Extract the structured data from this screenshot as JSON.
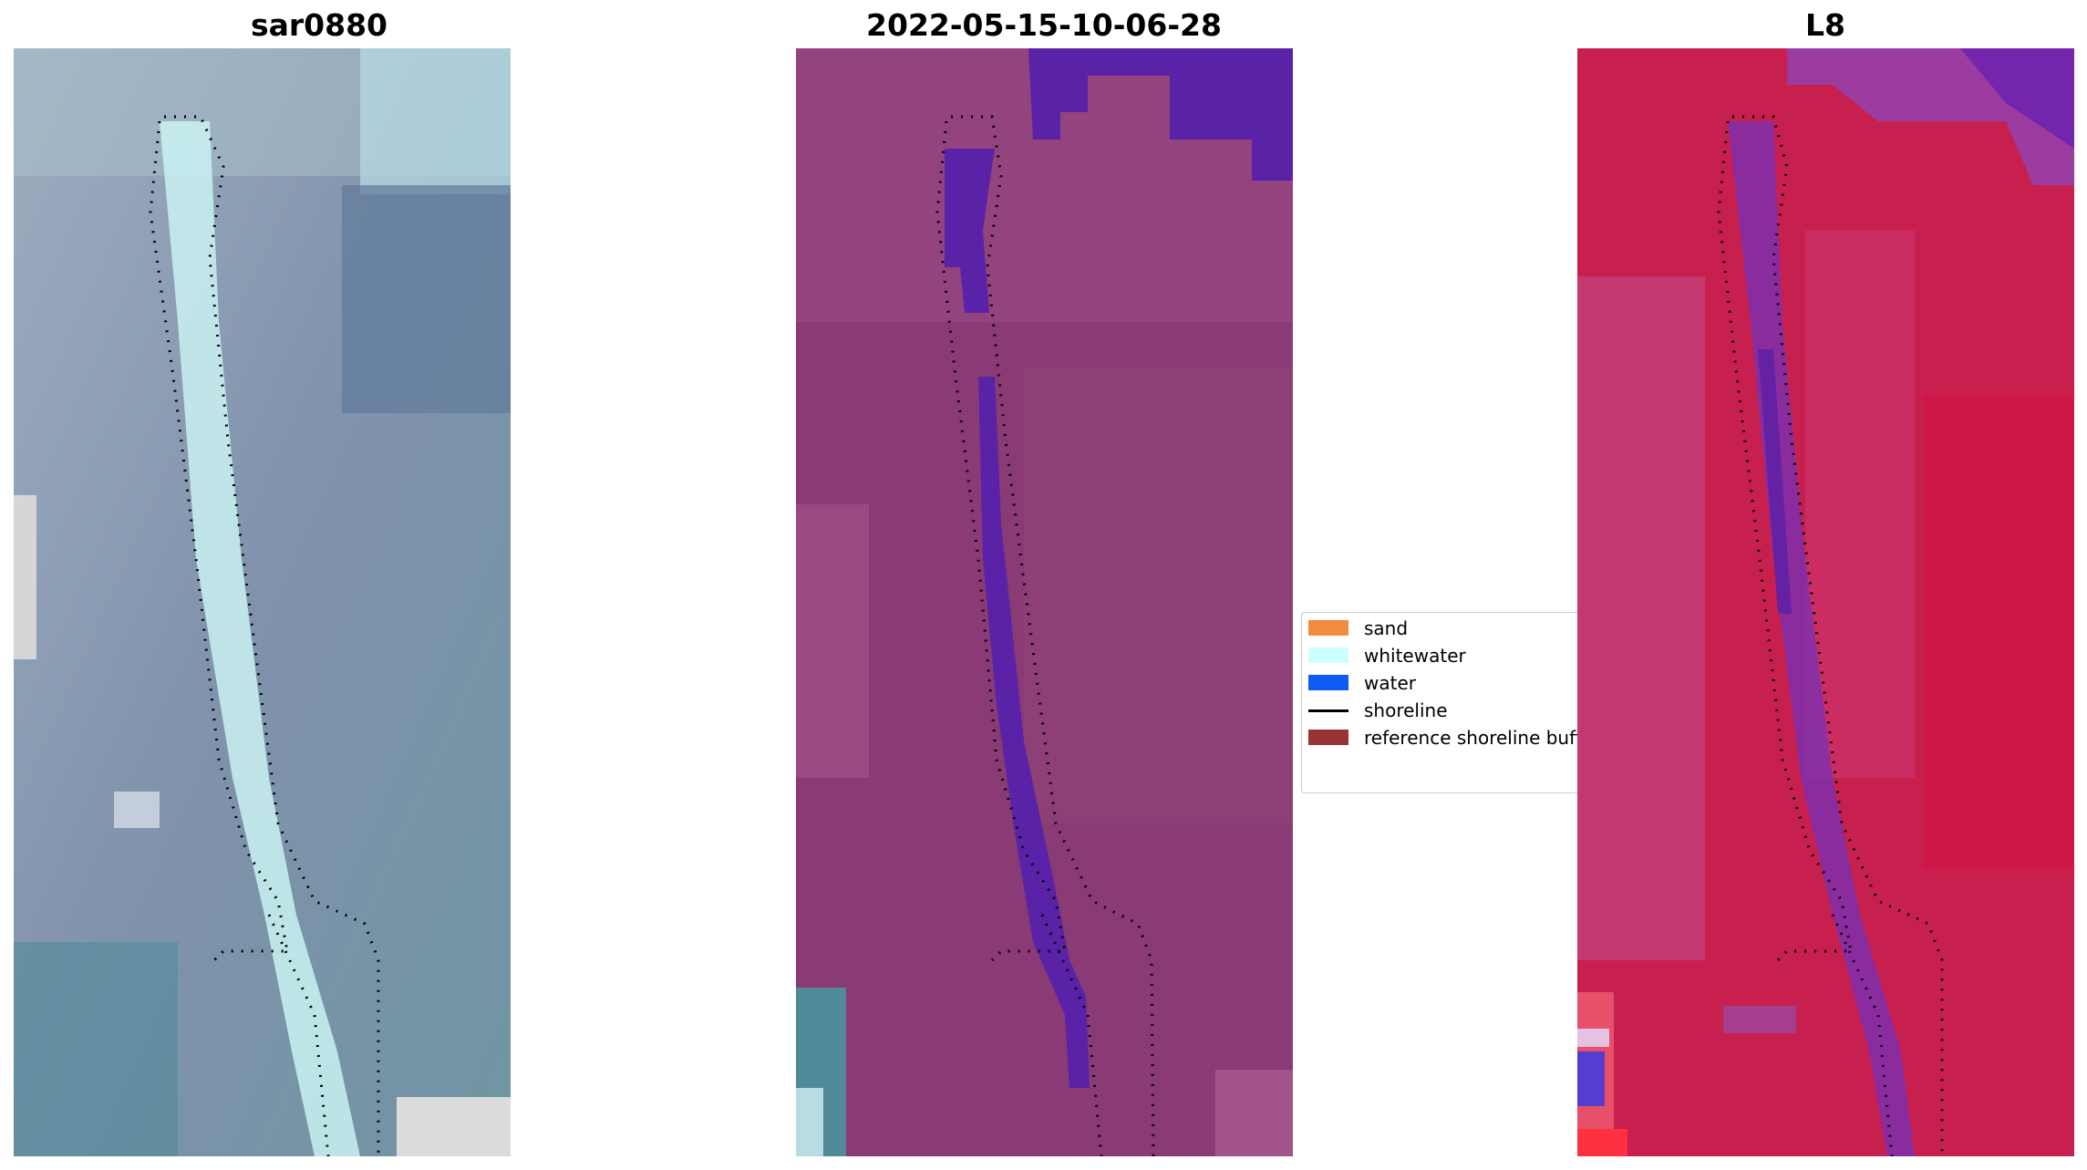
{
  "panels": [
    {
      "title": "sar0880"
    },
    {
      "title": "2022-05-15-10-06-28"
    },
    {
      "title": "L8"
    }
  ],
  "legend": {
    "items": [
      {
        "label": "sand",
        "color": "#f28c3c"
      },
      {
        "label": "whitewater",
        "color": "#ccffff"
      },
      {
        "label": "water",
        "color": "#0a5cf5"
      },
      {
        "label": "shoreline",
        "color": "#000000"
      },
      {
        "label": "reference shoreline buffer",
        "color": "#993333"
      }
    ]
  },
  "colors": {
    "rgb_base": "#7f8ea6",
    "classified_base": "#8a3a74",
    "water_class": "#5a22a6",
    "ndwi_base": "#c7204f"
  }
}
